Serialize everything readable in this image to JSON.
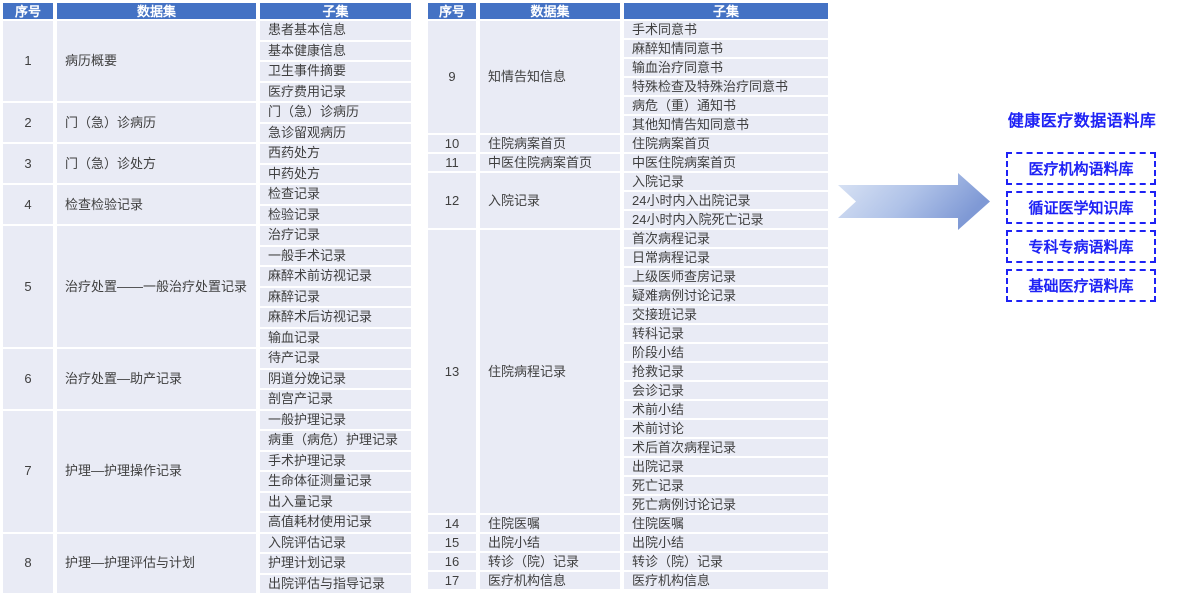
{
  "colors": {
    "table_header_bg": "#4472C4",
    "table_header_text": "#FFFFFF",
    "table_cell_bg": "#E9EBF5",
    "table_cell_text": "#3F3F3F",
    "corpus_accent_blue": "#1E22F5",
    "arrow_gradient_light": "#DCE5F5",
    "arrow_gradient_dark": "#7F99D5"
  },
  "left_table": {
    "headers": [
      "序号",
      "数据集",
      "子集"
    ],
    "groups": [
      {
        "no": "1",
        "dataset": "病历概要",
        "subsets": [
          "患者基本信息",
          "基本健康信息",
          "卫生事件摘要",
          "医疗费用记录"
        ]
      },
      {
        "no": "2",
        "dataset": "门（急）诊病历",
        "subsets": [
          "门（急）诊病历",
          "急诊留观病历"
        ]
      },
      {
        "no": "3",
        "dataset": "门（急）诊处方",
        "subsets": [
          "西药处方",
          "中药处方"
        ]
      },
      {
        "no": "4",
        "dataset": "检查检验记录",
        "subsets": [
          "检查记录",
          "检验记录"
        ]
      },
      {
        "no": "5",
        "dataset": "治疗处置——一般治疗处置记录",
        "subsets": [
          "治疗记录",
          "一般手术记录",
          "麻醉术前访视记录",
          "麻醉记录",
          "麻醉术后访视记录",
          "输血记录"
        ]
      },
      {
        "no": "6",
        "dataset": "治疗处置—助产记录",
        "subsets": [
          "待产记录",
          "阴道分娩记录",
          "剖宫产记录"
        ]
      },
      {
        "no": "7",
        "dataset": "护理—护理操作记录",
        "subsets": [
          "一般护理记录",
          "病重（病危）护理记录",
          "手术护理记录",
          "生命体征测量记录",
          "出入量记录",
          "高值耗材使用记录"
        ]
      },
      {
        "no": "8",
        "dataset": "护理—护理评估与计划",
        "subsets": [
          "入院评估记录",
          "护理计划记录",
          "出院评估与指导记录"
        ]
      }
    ]
  },
  "right_table": {
    "headers": [
      "序号",
      "数据集",
      "子集"
    ],
    "groups": [
      {
        "no": "9",
        "dataset": "知情告知信息",
        "subsets": [
          "手术同意书",
          "麻醉知情同意书",
          "输血治疗同意书",
          "特殊检查及特殊治疗同意书",
          "病危（重）通知书",
          "其他知情告知同意书"
        ]
      },
      {
        "no": "10",
        "dataset": "住院病案首页",
        "subsets": [
          "住院病案首页"
        ]
      },
      {
        "no": "11",
        "dataset": "中医住院病案首页",
        "subsets": [
          "中医住院病案首页"
        ]
      },
      {
        "no": "12",
        "dataset": "入院记录",
        "subsets": [
          "入院记录",
          "24小时内入出院记录",
          "24小时内入院死亡记录"
        ]
      },
      {
        "no": "13",
        "dataset": "住院病程记录",
        "subsets": [
          "首次病程记录",
          "日常病程记录",
          "上级医师查房记录",
          "疑难病例讨论记录",
          "交接班记录",
          "转科记录",
          "阶段小结",
          "抢救记录",
          "会诊记录",
          "术前小结",
          "术前讨论",
          "术后首次病程记录",
          "出院记录",
          "死亡记录",
          "死亡病例讨论记录"
        ]
      },
      {
        "no": "14",
        "dataset": "住院医嘱",
        "subsets": [
          "住院医嘱"
        ]
      },
      {
        "no": "15",
        "dataset": "出院小结",
        "subsets": [
          "出院小结"
        ]
      },
      {
        "no": "16",
        "dataset": "转诊（院）记录",
        "subsets": [
          "转诊（院）记录"
        ]
      },
      {
        "no": "17",
        "dataset": "医疗机构信息",
        "subsets": [
          "医疗机构信息"
        ]
      }
    ]
  },
  "corpus": {
    "title": "健康医疗数据语料库",
    "boxes": [
      "医疗机构语料库",
      "循证医学知识库",
      "专科专病语料库",
      "基础医疗语料库"
    ]
  }
}
